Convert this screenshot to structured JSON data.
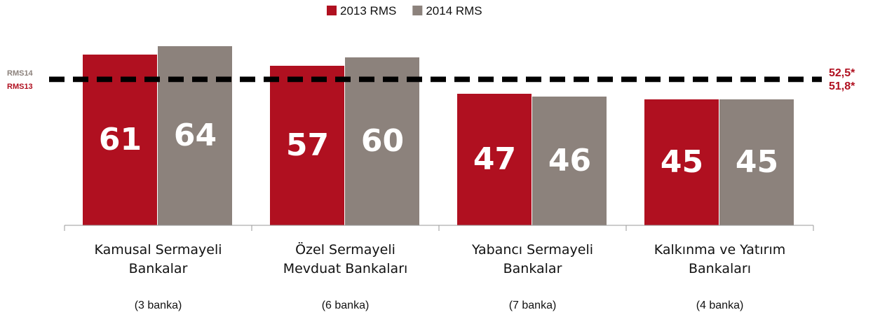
{
  "chart_data": {
    "type": "bar",
    "categories": [
      "Kamusal Sermayeli Bankalar",
      "Özel Sermayeli Mevduat Bankaları",
      "Yabancı Sermayeli Bankalar",
      "Kalkınma ve Yatırım Bankaları"
    ],
    "category_notes": [
      "(3 banka)",
      "(6 banka)",
      "(7 banka)",
      "(4 banka)"
    ],
    "series": [
      {
        "name": "2013 RMS",
        "color": "#b01020",
        "values": [
          61,
          57,
          47,
          45
        ]
      },
      {
        "name": "2014 RMS",
        "color": "#8c827c",
        "values": [
          64,
          60,
          46,
          45
        ]
      }
    ],
    "reference_lines": [
      {
        "name": "RMS14",
        "value": 52.5,
        "value_label": "52,5*",
        "color": "#8c827c"
      },
      {
        "name": "RMS13",
        "value": 51.8,
        "value_label": "51,8*",
        "color": "#b01020"
      }
    ],
    "ylim": [
      0,
      80.5
    ],
    "legend": "top"
  }
}
